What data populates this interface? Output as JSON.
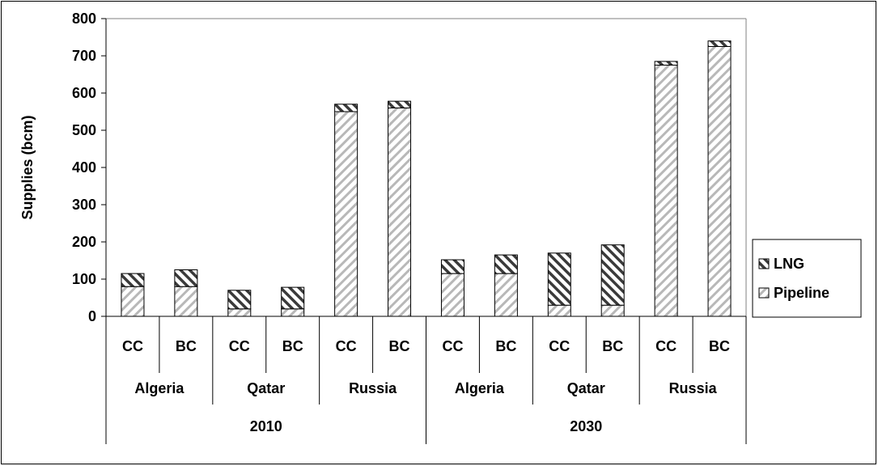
{
  "chart_data": {
    "type": "bar",
    "stacked": true,
    "title": "",
    "xlabel": "",
    "ylabel": "Supplies (bcm)",
    "ylim": [
      0,
      800
    ],
    "yticks": [
      0,
      100,
      200,
      300,
      400,
      500,
      600,
      700,
      800
    ],
    "grid": false,
    "legend_position": "right",
    "categories": [
      {
        "scenario": "CC",
        "country": "Algeria",
        "year": "2010"
      },
      {
        "scenario": "BC",
        "country": "Algeria",
        "year": "2010"
      },
      {
        "scenario": "CC",
        "country": "Qatar",
        "year": "2010"
      },
      {
        "scenario": "BC",
        "country": "Qatar",
        "year": "2010"
      },
      {
        "scenario": "CC",
        "country": "Russia",
        "year": "2010"
      },
      {
        "scenario": "BC",
        "country": "Russia",
        "year": "2010"
      },
      {
        "scenario": "CC",
        "country": "Algeria",
        "year": "2030"
      },
      {
        "scenario": "BC",
        "country": "Algeria",
        "year": "2030"
      },
      {
        "scenario": "CC",
        "country": "Qatar",
        "year": "2030"
      },
      {
        "scenario": "BC",
        "country": "Qatar",
        "year": "2030"
      },
      {
        "scenario": "CC",
        "country": "Russia",
        "year": "2030"
      },
      {
        "scenario": "BC",
        "country": "Russia",
        "year": "2030"
      }
    ],
    "country_groups": [
      {
        "label": "Algeria"
      },
      {
        "label": "Qatar"
      },
      {
        "label": "Russia"
      },
      {
        "label": "Algeria"
      },
      {
        "label": "Qatar"
      },
      {
        "label": "Russia"
      }
    ],
    "year_groups": [
      {
        "label": "2010"
      },
      {
        "label": "2030"
      }
    ],
    "series": [
      {
        "name": "Pipeline",
        "pattern": "light-diagonal",
        "values": [
          80,
          80,
          20,
          20,
          550,
          560,
          115,
          115,
          30,
          30,
          675,
          725
        ]
      },
      {
        "name": "LNG",
        "pattern": "dark-diagonal",
        "values": [
          35,
          45,
          50,
          58,
          20,
          18,
          37,
          50,
          140,
          162,
          10,
          15
        ]
      }
    ],
    "legend_order": [
      "LNG",
      "Pipeline"
    ]
  }
}
